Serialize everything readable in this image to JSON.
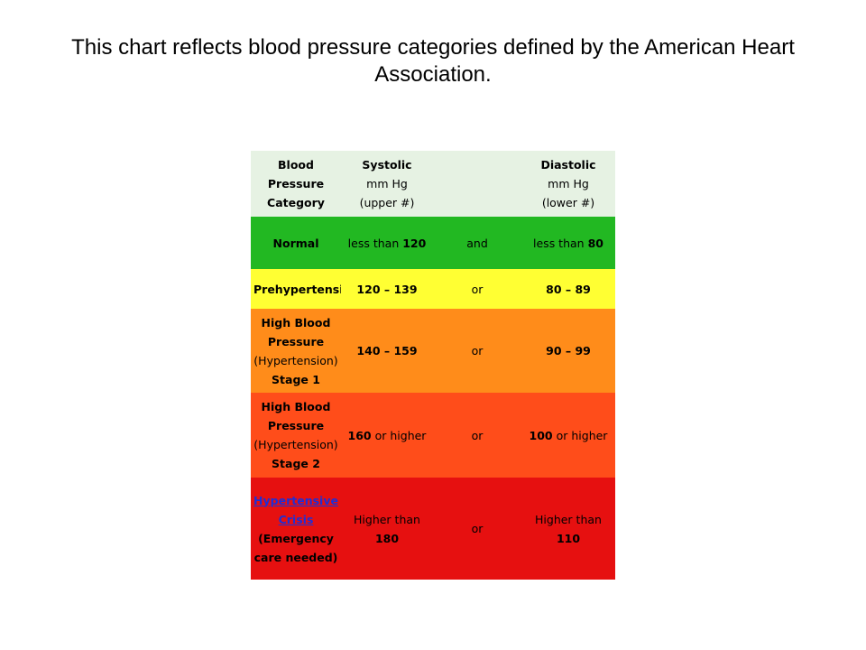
{
  "title": "This chart reflects blood pressure categories defined by the American Heart Association.",
  "table": {
    "header": {
      "category": "Blood Pressure Category",
      "systolic_title": "Systolic",
      "systolic_unit": "mm Hg",
      "systolic_note": "(upper #)",
      "conjunction": "",
      "diastolic_title": "Diastolic",
      "diastolic_unit": "mm Hg",
      "diastolic_note": "(lower #)"
    },
    "rows": [
      {
        "category": "Normal",
        "systolic_prefix": "less than",
        "systolic_value": "120",
        "conjunction": "and",
        "diastolic_prefix": "less than",
        "diastolic_value": "80",
        "color": "#22b822"
      },
      {
        "category": "Prehypertension",
        "systolic_value": "120 – 139",
        "conjunction": "or",
        "diastolic_value": "80 – 89",
        "color": "#ffff33"
      },
      {
        "category_bold_1": "High Blood Pressure",
        "category_plain": "(Hypertension)",
        "category_bold_2": "Stage 1",
        "systolic_value": "140 – 159",
        "conjunction": "or",
        "diastolic_value": "90 – 99",
        "color": "#ff8c1a"
      },
      {
        "category_bold_1": "High Blood Pressure",
        "category_plain": "(Hypertension)",
        "category_bold_2": "Stage 2",
        "systolic_value": "160",
        "systolic_suffix": "or higher",
        "conjunction": "or",
        "diastolic_value": "100",
        "diastolic_suffix": "or higher",
        "color": "#ff4d1a"
      },
      {
        "category_link": "Hypertensive Crisis",
        "category_note": "(Emergency care needed)",
        "systolic_prefix": "Higher than",
        "systolic_value": "180",
        "conjunction": "or",
        "diastolic_prefix": "Higher than",
        "diastolic_value": "110",
        "color": "#e61010"
      }
    ]
  }
}
